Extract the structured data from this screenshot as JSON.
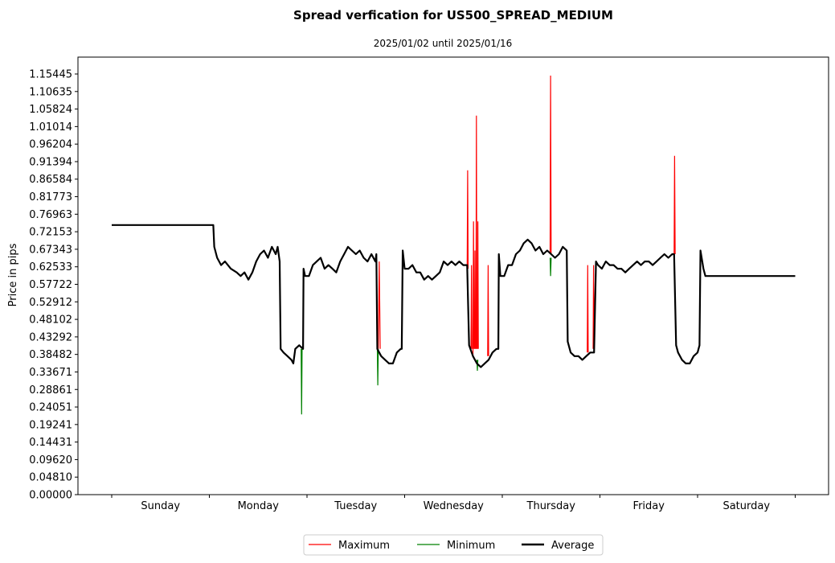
{
  "chart_data": {
    "type": "line",
    "title": "Spread verfication for US500_SPREAD_MEDIUM",
    "subtitle": "2025/01/02 until 2025/01/16",
    "ylabel": "Price in pips",
    "xlabel": "",
    "ylim": [
      0,
      1.2
    ],
    "xlim": [
      0,
      7.6
    ],
    "y_ticks": [
      "0.00000",
      "0.04810",
      "0.09620",
      "0.14431",
      "0.19241",
      "0.24051",
      "0.28861",
      "0.33671",
      "0.38482",
      "0.43292",
      "0.48102",
      "0.52912",
      "0.57722",
      "0.62533",
      "0.67343",
      "0.72153",
      "0.76963",
      "0.81773",
      "0.86584",
      "0.91394",
      "0.96204",
      "1.01014",
      "1.05824",
      "1.10635",
      "1.15445"
    ],
    "x_ticks": [
      "Sunday",
      "Monday",
      "Tuesday",
      "Wednesday",
      "Thursday",
      "Friday",
      "Saturday"
    ],
    "legend_position": "bottom-center",
    "colors": {
      "maximum": "#ff0000",
      "minimum": "#008000",
      "average": "#000000"
    },
    "series": [
      {
        "name": "Maximum",
        "points": [
          [
            2.73,
            0.4
          ],
          [
            2.74,
            0.64
          ],
          [
            2.75,
            0.4
          ],
          [
            3.64,
            0.62
          ],
          [
            3.645,
            0.89
          ],
          [
            3.65,
            0.62
          ],
          [
            3.68,
            0.4
          ],
          [
            3.685,
            0.63
          ],
          [
            3.69,
            0.4
          ],
          [
            3.7,
            0.38
          ],
          [
            3.705,
            0.75
          ],
          [
            3.71,
            0.4
          ],
          [
            3.715,
            0.4
          ],
          [
            3.72,
            0.67
          ],
          [
            3.725,
            0.4
          ],
          [
            3.73,
            0.4
          ],
          [
            3.735,
            1.04
          ],
          [
            3.74,
            0.4
          ],
          [
            3.745,
            0.4
          ],
          [
            3.75,
            0.75
          ],
          [
            3.755,
            0.4
          ],
          [
            3.85,
            0.38
          ],
          [
            3.855,
            0.63
          ],
          [
            3.86,
            0.38
          ],
          [
            4.49,
            0.66
          ],
          [
            4.495,
            1.15
          ],
          [
            4.5,
            0.66
          ],
          [
            4.87,
            0.39
          ],
          [
            4.875,
            0.63
          ],
          [
            4.88,
            0.39
          ],
          [
            4.93,
            0.4
          ],
          [
            4.935,
            0.63
          ],
          [
            4.94,
            0.4
          ],
          [
            5.76,
            0.66
          ],
          [
            5.765,
            0.93
          ],
          [
            5.77,
            0.66
          ]
        ]
      },
      {
        "name": "Minimum",
        "points": [
          [
            1.94,
            0.4
          ],
          [
            1.945,
            0.22
          ],
          [
            1.95,
            0.4
          ],
          [
            2.72,
            0.4
          ],
          [
            2.725,
            0.3
          ],
          [
            2.73,
            0.4
          ],
          [
            3.74,
            0.37
          ],
          [
            3.745,
            0.34
          ],
          [
            3.75,
            0.37
          ],
          [
            4.49,
            0.65
          ],
          [
            4.495,
            0.6
          ],
          [
            4.5,
            0.65
          ]
        ]
      },
      {
        "name": "Average",
        "points": [
          [
            0.0,
            0.74
          ],
          [
            1.04,
            0.74
          ],
          [
            1.05,
            0.68
          ],
          [
            1.08,
            0.65
          ],
          [
            1.12,
            0.63
          ],
          [
            1.16,
            0.64
          ],
          [
            1.22,
            0.62
          ],
          [
            1.28,
            0.61
          ],
          [
            1.32,
            0.6
          ],
          [
            1.36,
            0.61
          ],
          [
            1.4,
            0.59
          ],
          [
            1.44,
            0.61
          ],
          [
            1.48,
            0.64
          ],
          [
            1.52,
            0.66
          ],
          [
            1.56,
            0.67
          ],
          [
            1.6,
            0.65
          ],
          [
            1.64,
            0.68
          ],
          [
            1.68,
            0.66
          ],
          [
            1.7,
            0.68
          ],
          [
            1.72,
            0.64
          ],
          [
            1.73,
            0.4
          ],
          [
            1.76,
            0.39
          ],
          [
            1.8,
            0.38
          ],
          [
            1.84,
            0.37
          ],
          [
            1.86,
            0.36
          ],
          [
            1.88,
            0.4
          ],
          [
            1.92,
            0.41
          ],
          [
            1.96,
            0.4
          ],
          [
            1.965,
            0.62
          ],
          [
            1.98,
            0.6
          ],
          [
            2.02,
            0.6
          ],
          [
            2.06,
            0.63
          ],
          [
            2.1,
            0.64
          ],
          [
            2.14,
            0.65
          ],
          [
            2.18,
            0.62
          ],
          [
            2.22,
            0.63
          ],
          [
            2.26,
            0.62
          ],
          [
            2.3,
            0.61
          ],
          [
            2.34,
            0.64
          ],
          [
            2.38,
            0.66
          ],
          [
            2.42,
            0.68
          ],
          [
            2.46,
            0.67
          ],
          [
            2.5,
            0.66
          ],
          [
            2.54,
            0.67
          ],
          [
            2.58,
            0.65
          ],
          [
            2.62,
            0.64
          ],
          [
            2.66,
            0.66
          ],
          [
            2.7,
            0.64
          ],
          [
            2.71,
            0.66
          ],
          [
            2.72,
            0.4
          ],
          [
            2.76,
            0.38
          ],
          [
            2.8,
            0.37
          ],
          [
            2.84,
            0.36
          ],
          [
            2.88,
            0.36
          ],
          [
            2.92,
            0.39
          ],
          [
            2.96,
            0.4
          ],
          [
            2.97,
            0.4
          ],
          [
            2.98,
            0.67
          ],
          [
            3.0,
            0.62
          ],
          [
            3.04,
            0.62
          ],
          [
            3.08,
            0.63
          ],
          [
            3.12,
            0.61
          ],
          [
            3.16,
            0.61
          ],
          [
            3.2,
            0.59
          ],
          [
            3.24,
            0.6
          ],
          [
            3.28,
            0.59
          ],
          [
            3.32,
            0.6
          ],
          [
            3.36,
            0.61
          ],
          [
            3.4,
            0.64
          ],
          [
            3.44,
            0.63
          ],
          [
            3.48,
            0.64
          ],
          [
            3.52,
            0.63
          ],
          [
            3.56,
            0.64
          ],
          [
            3.6,
            0.63
          ],
          [
            3.64,
            0.63
          ],
          [
            3.66,
            0.41
          ],
          [
            3.7,
            0.38
          ],
          [
            3.74,
            0.36
          ],
          [
            3.78,
            0.35
          ],
          [
            3.82,
            0.36
          ],
          [
            3.86,
            0.37
          ],
          [
            3.9,
            0.39
          ],
          [
            3.94,
            0.4
          ],
          [
            3.96,
            0.4
          ],
          [
            3.965,
            0.66
          ],
          [
            3.98,
            0.6
          ],
          [
            4.02,
            0.6
          ],
          [
            4.06,
            0.63
          ],
          [
            4.1,
            0.63
          ],
          [
            4.14,
            0.66
          ],
          [
            4.18,
            0.67
          ],
          [
            4.22,
            0.69
          ],
          [
            4.26,
            0.7
          ],
          [
            4.3,
            0.69
          ],
          [
            4.34,
            0.67
          ],
          [
            4.38,
            0.68
          ],
          [
            4.42,
            0.66
          ],
          [
            4.46,
            0.67
          ],
          [
            4.5,
            0.66
          ],
          [
            4.54,
            0.65
          ],
          [
            4.58,
            0.66
          ],
          [
            4.62,
            0.68
          ],
          [
            4.66,
            0.67
          ],
          [
            4.67,
            0.42
          ],
          [
            4.7,
            0.39
          ],
          [
            4.74,
            0.38
          ],
          [
            4.78,
            0.38
          ],
          [
            4.82,
            0.37
          ],
          [
            4.86,
            0.38
          ],
          [
            4.9,
            0.39
          ],
          [
            4.94,
            0.39
          ],
          [
            4.96,
            0.64
          ],
          [
            4.98,
            0.63
          ],
          [
            5.02,
            0.62
          ],
          [
            5.06,
            0.64
          ],
          [
            5.1,
            0.63
          ],
          [
            5.14,
            0.63
          ],
          [
            5.18,
            0.62
          ],
          [
            5.22,
            0.62
          ],
          [
            5.26,
            0.61
          ],
          [
            5.3,
            0.62
          ],
          [
            5.34,
            0.63
          ],
          [
            5.38,
            0.64
          ],
          [
            5.42,
            0.63
          ],
          [
            5.46,
            0.64
          ],
          [
            5.5,
            0.64
          ],
          [
            5.54,
            0.63
          ],
          [
            5.58,
            0.64
          ],
          [
            5.62,
            0.65
          ],
          [
            5.66,
            0.66
          ],
          [
            5.7,
            0.65
          ],
          [
            5.74,
            0.66
          ],
          [
            5.76,
            0.66
          ],
          [
            5.78,
            0.41
          ],
          [
            5.8,
            0.39
          ],
          [
            5.84,
            0.37
          ],
          [
            5.88,
            0.36
          ],
          [
            5.92,
            0.36
          ],
          [
            5.96,
            0.38
          ],
          [
            6.0,
            0.39
          ],
          [
            6.02,
            0.41
          ],
          [
            6.03,
            0.67
          ],
          [
            6.06,
            0.62
          ],
          [
            6.08,
            0.6
          ],
          [
            7.0,
            0.6
          ]
        ]
      }
    ]
  }
}
